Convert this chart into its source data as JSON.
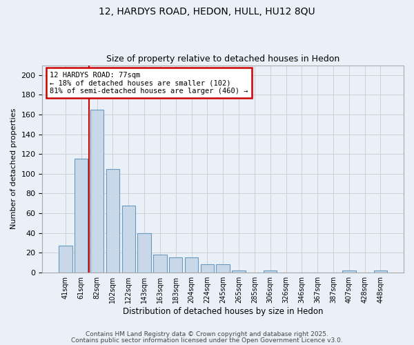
{
  "title1": "12, HARDYS ROAD, HEDON, HULL, HU12 8QU",
  "title2": "Size of property relative to detached houses in Hedon",
  "xlabel": "Distribution of detached houses by size in Hedon",
  "ylabel": "Number of detached properties",
  "categories": [
    "41sqm",
    "61sqm",
    "82sqm",
    "102sqm",
    "122sqm",
    "143sqm",
    "163sqm",
    "183sqm",
    "204sqm",
    "224sqm",
    "245sqm",
    "265sqm",
    "285sqm",
    "306sqm",
    "326sqm",
    "346sqm",
    "367sqm",
    "387sqm",
    "407sqm",
    "428sqm",
    "448sqm"
  ],
  "values": [
    27,
    115,
    165,
    105,
    68,
    40,
    18,
    15,
    15,
    8,
    8,
    2,
    0,
    2,
    0,
    0,
    0,
    0,
    2,
    0,
    2
  ],
  "bar_color": "#c8d8e8",
  "bar_edge_color": "#6699bb",
  "vline_x": 1.5,
  "annotation_text": "12 HARDYS ROAD: 77sqm\n← 18% of detached houses are smaller (102)\n81% of semi-detached houses are larger (460) →",
  "annotation_box_color": "#ffffff",
  "annotation_box_edge_color": "#cc0000",
  "vline_color": "#cc0000",
  "grid_color": "#cccccc",
  "bg_color": "#eaf0f8",
  "footer1": "Contains HM Land Registry data © Crown copyright and database right 2025.",
  "footer2": "Contains public sector information licensed under the Open Government Licence v3.0.",
  "ylim": [
    0,
    210
  ],
  "yticks": [
    0,
    20,
    40,
    60,
    80,
    100,
    120,
    140,
    160,
    180,
    200
  ]
}
